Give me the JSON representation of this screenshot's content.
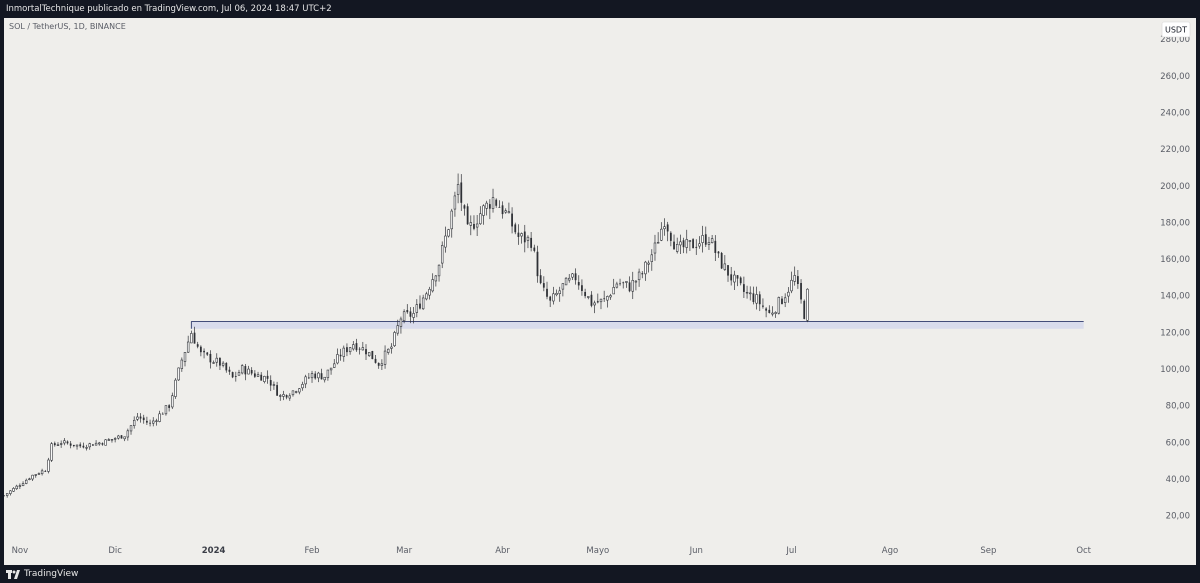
{
  "header": {
    "publisher_line": "InmortalTechnique publicado en TradingView.com, Jul 06, 2024 18:47 UTC+2"
  },
  "footer": {
    "brand": "TradingView"
  },
  "colors": {
    "background": "#efeeeb",
    "candle": "#2f3136",
    "support_zone_fill": "#d9dcec",
    "support_line": "#2f3a6a",
    "frame": "#131722"
  },
  "chart_data": {
    "type": "candlestick",
    "symbol_label": "SOL / TetherUS, 1D, BINANCE",
    "currency": "USDT",
    "y_axis": {
      "ticks": [
        "20,00",
        "40,00",
        "60,00",
        "80,00",
        "100,00",
        "120,00",
        "140,00",
        "160,00",
        "180,00",
        "200,00",
        "220,00",
        "240,00",
        "260,00",
        "280,00"
      ],
      "range": [
        10,
        285
      ]
    },
    "x_axis": {
      "labels": [
        "Nov",
        "Dic",
        "2024",
        "Feb",
        "Mar",
        "Abr",
        "Mayo",
        "Jun",
        "Jul",
        "Ago",
        "Sep",
        "Oct"
      ],
      "bold_label": "2024",
      "start": "2023-10-27",
      "end": "2024-10-20"
    },
    "support_zone": {
      "from": "2023-12-25",
      "to": "2024-10-01",
      "low": 122,
      "high": 126
    },
    "anchor_points": [
      [
        "2023-10-27",
        31
      ],
      [
        "2023-11-01",
        37
      ],
      [
        "2023-11-05",
        42
      ],
      [
        "2023-11-09",
        45
      ],
      [
        "2023-11-11",
        58
      ],
      [
        "2023-11-14",
        60
      ],
      [
        "2023-11-20",
        58
      ],
      [
        "2023-11-27",
        60
      ],
      [
        "2023-12-04",
        64
      ],
      [
        "2023-12-08",
        74
      ],
      [
        "2023-12-12",
        70
      ],
      [
        "2023-12-18",
        80
      ],
      [
        "2023-12-22",
        105
      ],
      [
        "2023-12-25",
        120
      ],
      [
        "2023-12-28",
        108
      ],
      [
        "2024-01-03",
        103
      ],
      [
        "2024-01-07",
        95
      ],
      [
        "2024-01-10",
        100
      ],
      [
        "2024-01-14",
        97
      ],
      [
        "2024-01-18",
        95
      ],
      [
        "2024-01-22",
        85
      ],
      [
        "2024-01-26",
        88
      ],
      [
        "2024-02-01",
        97
      ],
      [
        "2024-02-05",
        96
      ],
      [
        "2024-02-10",
        108
      ],
      [
        "2024-02-14",
        114
      ],
      [
        "2024-02-18",
        110
      ],
      [
        "2024-02-22",
        103
      ],
      [
        "2024-02-26",
        112
      ],
      [
        "2024-02-29",
        128
      ],
      [
        "2024-03-04",
        130
      ],
      [
        "2024-03-08",
        142
      ],
      [
        "2024-03-12",
        158
      ],
      [
        "2024-03-16",
        185
      ],
      [
        "2024-03-18",
        200
      ],
      [
        "2024-03-21",
        175
      ],
      [
        "2024-03-25",
        185
      ],
      [
        "2024-03-29",
        193
      ],
      [
        "2024-04-02",
        185
      ],
      [
        "2024-04-06",
        172
      ],
      [
        "2024-04-10",
        170
      ],
      [
        "2024-04-13",
        145
      ],
      [
        "2024-04-16",
        136
      ],
      [
        "2024-04-20",
        145
      ],
      [
        "2024-04-24",
        150
      ],
      [
        "2024-04-29",
        136
      ],
      [
        "2024-05-03",
        137
      ],
      [
        "2024-05-07",
        147
      ],
      [
        "2024-05-11",
        145
      ],
      [
        "2024-05-15",
        152
      ],
      [
        "2024-05-19",
        166
      ],
      [
        "2024-05-22",
        182
      ],
      [
        "2024-05-26",
        165
      ],
      [
        "2024-05-31",
        168
      ],
      [
        "2024-06-05",
        172
      ],
      [
        "2024-06-08",
        160
      ],
      [
        "2024-06-12",
        150
      ],
      [
        "2024-06-16",
        142
      ],
      [
        "2024-06-20",
        138
      ],
      [
        "2024-06-24",
        130
      ],
      [
        "2024-06-28",
        138
      ],
      [
        "2024-07-02",
        150
      ],
      [
        "2024-07-05",
        130
      ],
      [
        "2024-07-06",
        141
      ]
    ]
  }
}
